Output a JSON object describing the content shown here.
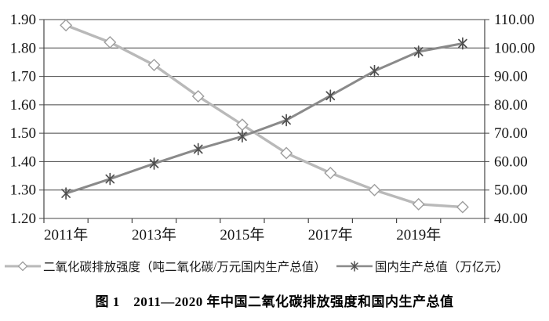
{
  "caption": "图 1　2011—2020 年中国二氧化碳排放强度和国内生产总值",
  "chart_data": {
    "type": "line",
    "title": "图 1　2011—2020 年中国二氧化碳排放强度和国内生产总值",
    "x_years": [
      2011,
      2012,
      2013,
      2014,
      2015,
      2016,
      2017,
      2018,
      2019,
      2020
    ],
    "x_tick_labels": [
      "2011年",
      "2013年",
      "2015年",
      "2017年",
      "2019年"
    ],
    "x_tick_indices": [
      0,
      2,
      4,
      6,
      8
    ],
    "series": [
      {
        "name": "二氧化碳排放强度（吨二氧化碳/万元国内生产总值）",
        "axis": "left",
        "marker": "diamond",
        "line_color": "#b9b9b9",
        "marker_color": "#9e9e9e",
        "values": [
          1.88,
          1.82,
          1.74,
          1.63,
          1.53,
          1.43,
          1.36,
          1.3,
          1.25,
          1.24
        ]
      },
      {
        "name": "国内生产总值（万亿元）",
        "axis": "right",
        "marker": "asterisk",
        "line_color": "#8a8a8a",
        "marker_color": "#4f4f4f",
        "values": [
          48.8,
          53.9,
          59.3,
          64.4,
          68.9,
          74.6,
          83.2,
          91.9,
          98.7,
          101.6
        ]
      }
    ],
    "left_axis": {
      "min": 1.2,
      "max": 1.9,
      "step": 0.1,
      "decimals": 2
    },
    "right_axis": {
      "min": 40.0,
      "max": 110.0,
      "step": 10.0,
      "decimals": 2
    },
    "grid": true,
    "legend_position": "bottom",
    "grid_color": "#454545",
    "text_color": "#141414"
  }
}
